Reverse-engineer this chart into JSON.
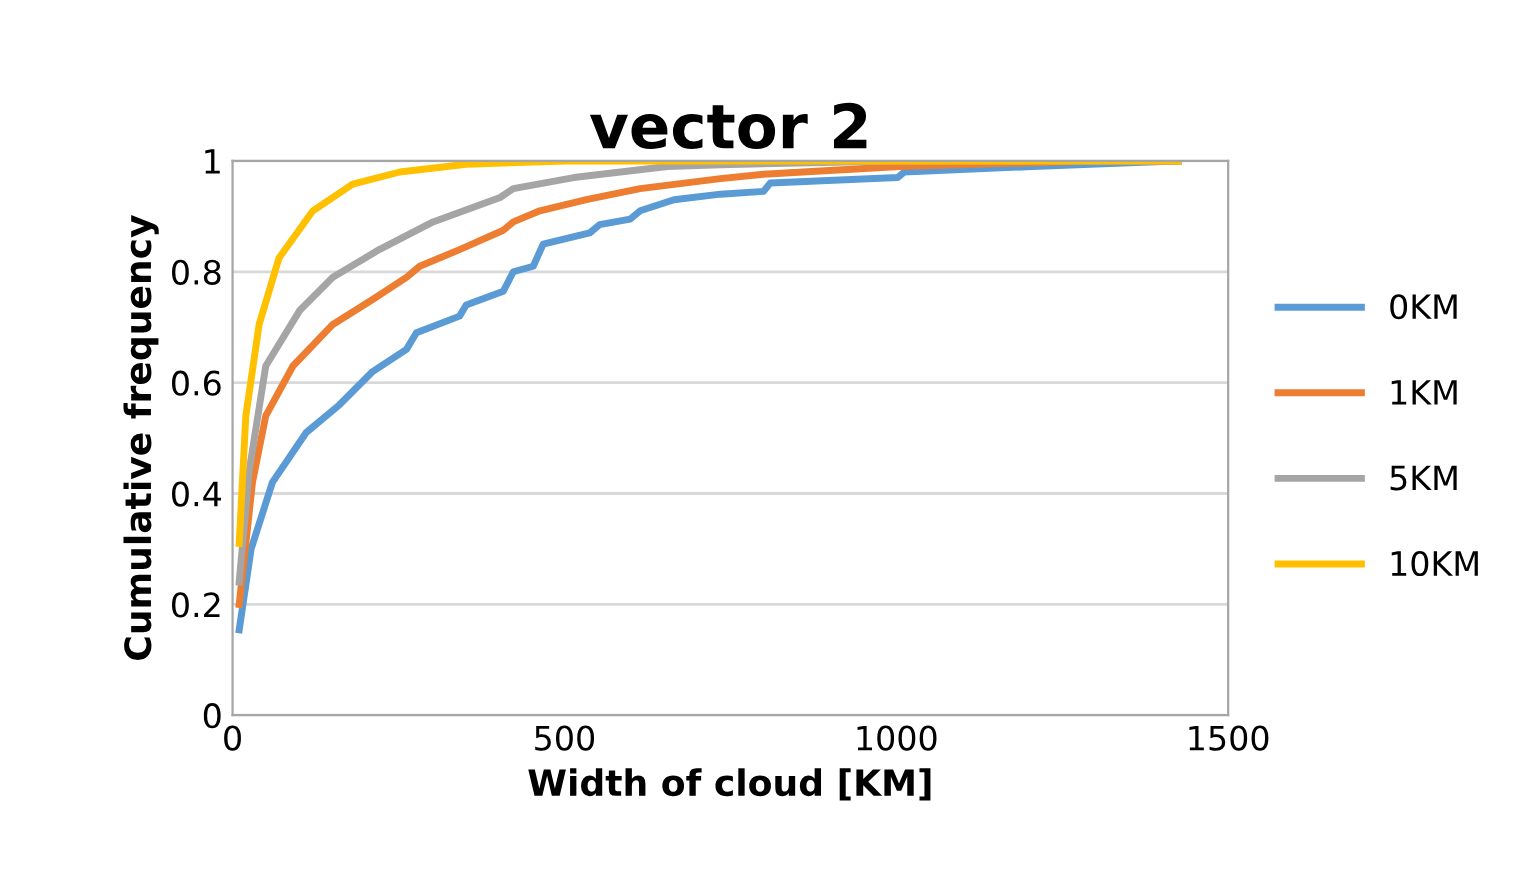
{
  "chart_data": {
    "type": "line",
    "title": "vector 2",
    "xlabel": "Width of cloud [KM]",
    "ylabel": "Cumulative frequency",
    "xlim": [
      0,
      1500
    ],
    "xticks": [
      0,
      500,
      1000,
      1500
    ],
    "ylim": [
      0,
      1
    ],
    "yticks": [
      0,
      0.2,
      0.4,
      0.6,
      0.8,
      1
    ],
    "grid": "y",
    "legend": "right",
    "marker": "none",
    "line_style": "solid",
    "series": [
      {
        "name": "0KM",
        "color": "#5b9bd5",
        "x": [
          10,
          28,
          60,
          111,
          161,
          211,
          262,
          277,
          342,
          352,
          408,
          423,
          453,
          468,
          538,
          553,
          599,
          614,
          665,
          735,
          800,
          810,
          1002,
          1012,
          1205,
          1425
        ],
        "values": [
          0.154,
          0.3,
          0.42,
          0.51,
          0.56,
          0.62,
          0.66,
          0.69,
          0.72,
          0.74,
          0.765,
          0.8,
          0.81,
          0.85,
          0.87,
          0.885,
          0.895,
          0.91,
          0.93,
          0.94,
          0.945,
          0.96,
          0.97,
          0.98,
          0.99,
          1.0
        ]
      },
      {
        "name": "1KM",
        "color": "#ed7d31",
        "x": [
          10,
          30,
          50,
          91,
          151,
          211,
          262,
          282,
          342,
          408,
          423,
          463,
          533,
          614,
          735,
          800,
          1005,
          1300,
          1425
        ],
        "values": [
          0.2,
          0.42,
          0.54,
          0.63,
          0.705,
          0.75,
          0.79,
          0.81,
          0.84,
          0.875,
          0.89,
          0.91,
          0.93,
          0.95,
          0.968,
          0.976,
          0.99,
          1.0,
          1.0
        ]
      },
      {
        "name": "5KM",
        "color": "#a5a5a5",
        "x": [
          10,
          25,
          50,
          101,
          151,
          221,
          302,
          403,
          423,
          514,
          655,
          735,
          1000,
          1425
        ],
        "values": [
          0.24,
          0.44,
          0.63,
          0.73,
          0.79,
          0.84,
          0.89,
          0.934,
          0.95,
          0.97,
          0.99,
          0.993,
          1.0,
          1.0
        ]
      },
      {
        "name": "10KM",
        "color": "#ffc000",
        "x": [
          10,
          20,
          40,
          70,
          121,
          181,
          252,
          352,
          503,
          1425
        ],
        "values": [
          0.31,
          0.54,
          0.705,
          0.825,
          0.91,
          0.958,
          0.98,
          0.994,
          1.0,
          1.0
        ]
      }
    ]
  }
}
